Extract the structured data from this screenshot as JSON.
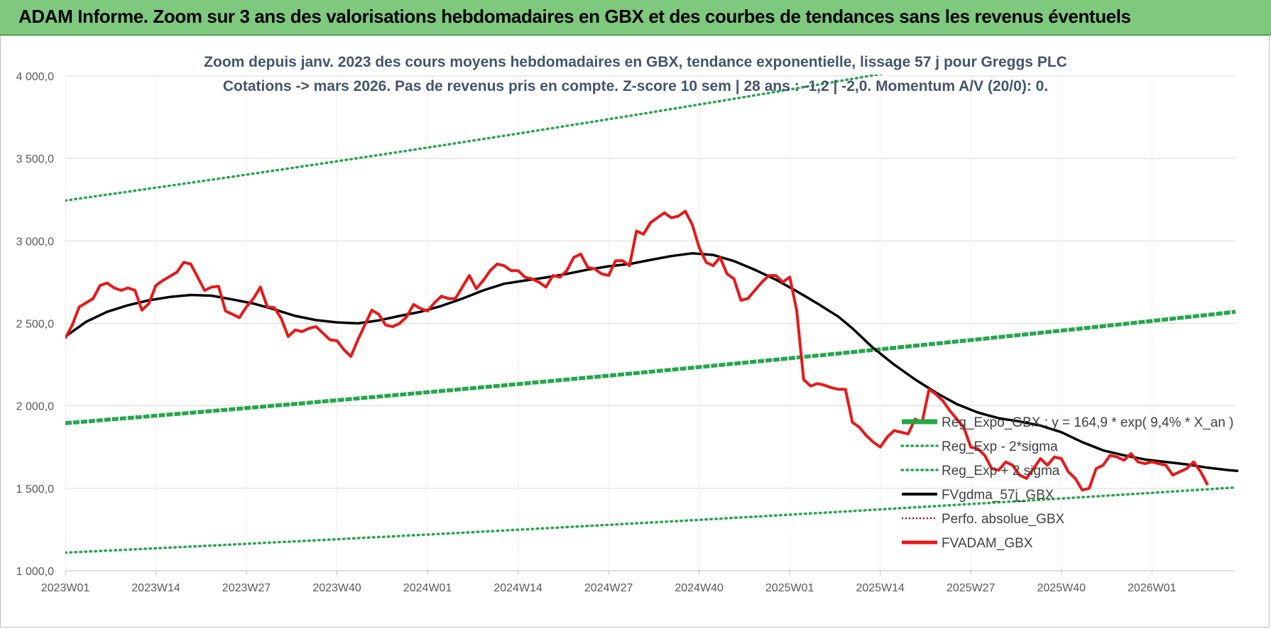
{
  "banner": {
    "title": "ADAM Informe. Zoom sur 3 ans des valorisations hebdomadaires en GBX et des courbes de tendances sans les revenus éventuels"
  },
  "colors": {
    "banner_bg": "#7ec97e",
    "reg_expo": "#22a84a",
    "fvgdma": "#000000",
    "fvadam": "#e81818",
    "perfo": "#c00000",
    "grid": "#d9d9d9"
  },
  "chart_data": {
    "type": "line",
    "title_line1": "Zoom depuis janv. 2023 des cours moyens hebdomadaires en GBX, tendance exponentielle, lissage 57 j pour Greggs PLC",
    "title_line2": "Cotations -> mars 2026. Pas de revenus pris en compte. Z-score 10 sem | 28 ans : -1,2 | -2,0. Momentum A/V (20/0): 0.",
    "ylim": [
      1000,
      4000
    ],
    "yticks": [
      "1 000,0",
      "1 500,0",
      "2 000,0",
      "2 500,0",
      "3 000,0",
      "3 500,0",
      "4 000,0"
    ],
    "ytick_values": [
      1000,
      1500,
      2000,
      2500,
      3000,
      3500,
      4000
    ],
    "xticks": [
      "2023W01",
      "2023W14",
      "2023W27",
      "2023W40",
      "2024W01",
      "2024W14",
      "2024W27",
      "2024W40",
      "2025W01",
      "2025W14",
      "2025W27",
      "2025W40",
      "2026W01"
    ],
    "x_total_weeks": 169,
    "grid": "horizontal",
    "legend_position": "bottom-right",
    "legend": [
      {
        "key": "reg_expo",
        "label": "Reg_Expo_GBX : y = 164,9 * exp( 9,4% *  X_an )"
      },
      {
        "key": "reg_minus",
        "label": "Reg_Exp - 2*sigma"
      },
      {
        "key": "reg_plus",
        "label": "Reg_Exp + 2 sigma"
      },
      {
        "key": "fvgdma",
        "label": "FVgdma_57j_GBX"
      },
      {
        "key": "perfo",
        "label": "Perfo. absolue_GBX"
      },
      {
        "key": "fvadam",
        "label": "FVADAM_GBX"
      }
    ],
    "series": {
      "reg_expo": {
        "start": 1895,
        "end": 2570
      },
      "reg_minus": {
        "start": 1110,
        "end": 1505
      },
      "reg_plus": {
        "start": 3245,
        "end": 4400
      },
      "fvgdma": [
        [
          0,
          2420
        ],
        [
          3,
          2510
        ],
        [
          6,
          2570
        ],
        [
          9,
          2610
        ],
        [
          12,
          2640
        ],
        [
          15,
          2660
        ],
        [
          18,
          2672
        ],
        [
          21,
          2668
        ],
        [
          24,
          2645
        ],
        [
          27,
          2620
        ],
        [
          30,
          2585
        ],
        [
          33,
          2545
        ],
        [
          36,
          2520
        ],
        [
          39,
          2506
        ],
        [
          42,
          2500
        ],
        [
          45,
          2518
        ],
        [
          48,
          2545
        ],
        [
          51,
          2570
        ],
        [
          54,
          2606
        ],
        [
          57,
          2650
        ],
        [
          60,
          2700
        ],
        [
          63,
          2740
        ],
        [
          66,
          2760
        ],
        [
          69,
          2778
        ],
        [
          72,
          2800
        ],
        [
          75,
          2826
        ],
        [
          78,
          2846
        ],
        [
          81,
          2860
        ],
        [
          84,
          2885
        ],
        [
          87,
          2908
        ],
        [
          90,
          2925
        ],
        [
          93,
          2915
        ],
        [
          96,
          2878
        ],
        [
          99,
          2825
        ],
        [
          102,
          2765
        ],
        [
          105,
          2695
        ],
        [
          108,
          2620
        ],
        [
          111,
          2540
        ],
        [
          113,
          2470
        ],
        [
          116,
          2350
        ],
        [
          119,
          2250
        ],
        [
          122,
          2160
        ],
        [
          125,
          2080
        ],
        [
          128,
          2010
        ],
        [
          131,
          1960
        ],
        [
          134,
          1925
        ],
        [
          137,
          1905
        ],
        [
          140,
          1880
        ],
        [
          143,
          1840
        ],
        [
          146,
          1780
        ],
        [
          149,
          1730
        ],
        [
          152,
          1700
        ],
        [
          155,
          1675
        ],
        [
          158,
          1660
        ],
        [
          161,
          1645
        ],
        [
          164,
          1625
        ],
        [
          167,
          1610
        ],
        [
          170,
          1600
        ],
        [
          173,
          1630
        ],
        [
          176,
          1630
        ],
        [
          179,
          1620
        ],
        [
          182,
          1605
        ],
        [
          185,
          1595
        ],
        [
          188,
          1570
        ]
      ],
      "fvadam": [
        [
          0,
          2410
        ],
        [
          1,
          2490
        ],
        [
          2,
          2600
        ],
        [
          4,
          2650
        ],
        [
          5,
          2730
        ],
        [
          6,
          2745
        ],
        [
          7,
          2715
        ],
        [
          8,
          2700
        ],
        [
          9,
          2715
        ],
        [
          10,
          2700
        ],
        [
          11,
          2580
        ],
        [
          12,
          2620
        ],
        [
          13,
          2730
        ],
        [
          14,
          2760
        ],
        [
          15,
          2785
        ],
        [
          16,
          2810
        ],
        [
          17,
          2870
        ],
        [
          18,
          2860
        ],
        [
          19,
          2780
        ],
        [
          20,
          2700
        ],
        [
          21,
          2720
        ],
        [
          22,
          2725
        ],
        [
          23,
          2575
        ],
        [
          24,
          2555
        ],
        [
          25,
          2535
        ],
        [
          26,
          2600
        ],
        [
          27,
          2650
        ],
        [
          28,
          2720
        ],
        [
          29,
          2600
        ],
        [
          30,
          2595
        ],
        [
          31,
          2530
        ],
        [
          32,
          2420
        ],
        [
          33,
          2460
        ],
        [
          34,
          2450
        ],
        [
          35,
          2470
        ],
        [
          36,
          2480
        ],
        [
          37,
          2440
        ],
        [
          38,
          2400
        ],
        [
          39,
          2395
        ],
        [
          40,
          2340
        ],
        [
          41,
          2300
        ],
        [
          42,
          2400
        ],
        [
          43,
          2490
        ],
        [
          44,
          2580
        ],
        [
          45,
          2555
        ],
        [
          46,
          2490
        ],
        [
          47,
          2480
        ],
        [
          48,
          2500
        ],
        [
          49,
          2540
        ],
        [
          50,
          2615
        ],
        [
          51,
          2590
        ],
        [
          52,
          2575
        ],
        [
          53,
          2625
        ],
        [
          54,
          2665
        ],
        [
          55,
          2650
        ],
        [
          56,
          2650
        ],
        [
          57,
          2720
        ],
        [
          58,
          2790
        ],
        [
          59,
          2710
        ],
        [
          60,
          2760
        ],
        [
          61,
          2820
        ],
        [
          62,
          2860
        ],
        [
          63,
          2850
        ],
        [
          64,
          2820
        ],
        [
          65,
          2820
        ],
        [
          66,
          2780
        ],
        [
          67,
          2770
        ],
        [
          68,
          2750
        ],
        [
          69,
          2720
        ],
        [
          70,
          2790
        ],
        [
          71,
          2780
        ],
        [
          72,
          2820
        ],
        [
          73,
          2900
        ],
        [
          74,
          2920
        ],
        [
          75,
          2840
        ],
        [
          76,
          2830
        ],
        [
          77,
          2800
        ],
        [
          78,
          2790
        ],
        [
          79,
          2880
        ],
        [
          80,
          2880
        ],
        [
          81,
          2850
        ],
        [
          82,
          3060
        ],
        [
          83,
          3040
        ],
        [
          84,
          3110
        ],
        [
          85,
          3140
        ],
        [
          86,
          3170
        ],
        [
          87,
          3140
        ],
        [
          88,
          3150
        ],
        [
          89,
          3180
        ],
        [
          90,
          3100
        ],
        [
          91,
          2960
        ],
        [
          92,
          2870
        ],
        [
          93,
          2850
        ],
        [
          94,
          2900
        ],
        [
          95,
          2800
        ],
        [
          96,
          2770
        ],
        [
          97,
          2640
        ],
        [
          98,
          2650
        ],
        [
          99,
          2700
        ],
        [
          100,
          2750
        ],
        [
          101,
          2790
        ],
        [
          102,
          2790
        ],
        [
          103,
          2750
        ],
        [
          104,
          2780
        ],
        [
          105,
          2580
        ],
        [
          106,
          2160
        ],
        [
          107,
          2120
        ],
        [
          108,
          2135
        ],
        [
          109,
          2125
        ],
        [
          110,
          2110
        ],
        [
          111,
          2100
        ],
        [
          112,
          2100
        ],
        [
          113,
          1900
        ],
        [
          114,
          1870
        ],
        [
          115,
          1820
        ],
        [
          116,
          1780
        ],
        [
          117,
          1750
        ],
        [
          118,
          1810
        ],
        [
          119,
          1850
        ],
        [
          120,
          1840
        ],
        [
          121,
          1830
        ],
        [
          122,
          1920
        ],
        [
          123,
          1900
        ],
        [
          124,
          2100
        ],
        [
          125,
          2070
        ],
        [
          126,
          2030
        ],
        [
          127,
          1970
        ],
        [
          128,
          1920
        ],
        [
          129,
          1870
        ],
        [
          130,
          1750
        ],
        [
          131,
          1740
        ],
        [
          132,
          1700
        ],
        [
          133,
          1620
        ],
        [
          134,
          1610
        ],
        [
          135,
          1660
        ],
        [
          136,
          1640
        ],
        [
          137,
          1580
        ],
        [
          138,
          1560
        ],
        [
          139,
          1620
        ],
        [
          140,
          1680
        ],
        [
          141,
          1640
        ],
        [
          142,
          1690
        ],
        [
          143,
          1680
        ],
        [
          144,
          1600
        ],
        [
          145,
          1560
        ],
        [
          146,
          1490
        ],
        [
          147,
          1500
        ],
        [
          148,
          1620
        ],
        [
          149,
          1640
        ],
        [
          150,
          1700
        ],
        [
          151,
          1690
        ],
        [
          152,
          1670
        ],
        [
          153,
          1710
        ],
        [
          154,
          1660
        ],
        [
          155,
          1650
        ],
        [
          156,
          1660
        ],
        [
          157,
          1650
        ],
        [
          158,
          1640
        ],
        [
          159,
          1580
        ],
        [
          160,
          1600
        ],
        [
          161,
          1620
        ],
        [
          162,
          1660
        ],
        [
          163,
          1600
        ],
        [
          164,
          1520
        ]
      ]
    }
  }
}
